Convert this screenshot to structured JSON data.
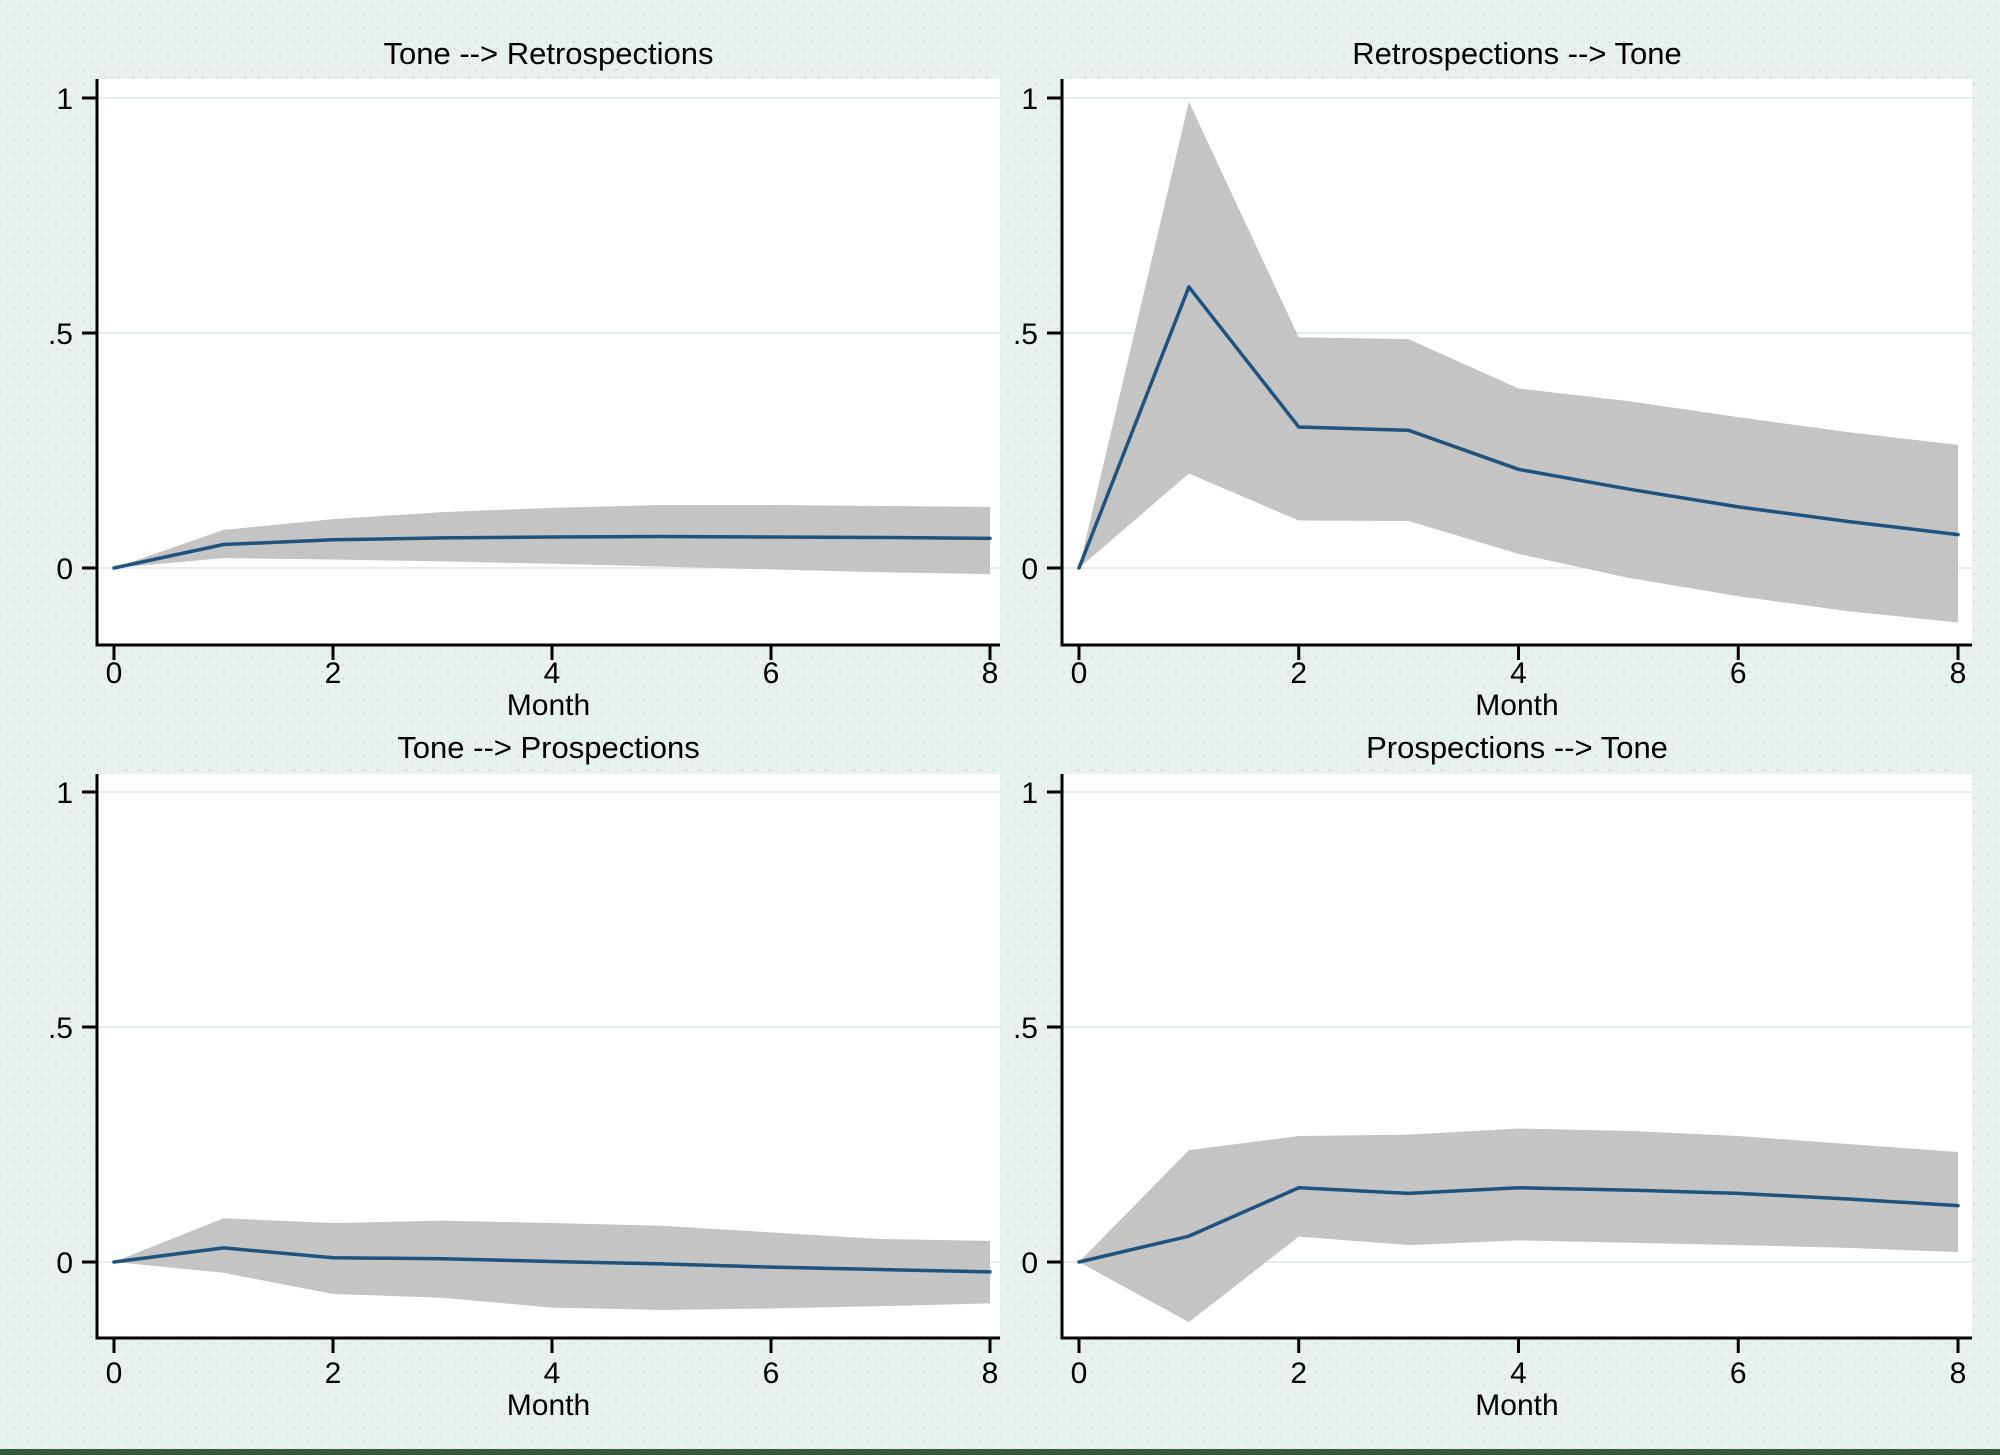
{
  "figure": {
    "background_color": "#e9f1ef",
    "plot_area_color": "#ffffff",
    "grid_color": "#e3eeec",
    "axis_color": "#000000",
    "band_color": "#c4c4c4",
    "line_color": "#1f537f",
    "bottom_border_color": "#33593f"
  },
  "axes": {
    "x_label": "Month",
    "x_ticks": [
      "0",
      "2",
      "4",
      "6",
      "8"
    ],
    "x_tick_values": [
      0,
      2,
      4,
      6,
      8
    ],
    "y_ticks": [
      "0",
      ".5",
      "1"
    ],
    "y_tick_values": [
      0,
      0.5,
      1
    ],
    "x_range": [
      0,
      8
    ],
    "y_range_displayed": [
      -0.16,
      1.04
    ],
    "grid": "on",
    "legend": "none"
  },
  "chart_data": [
    {
      "type": "line",
      "title": "Tone --> Retrospections",
      "xlabel": "Month",
      "x": [
        0,
        1,
        2,
        3,
        4,
        5,
        6,
        7,
        8
      ],
      "series": [
        {
          "name": "irf",
          "values": [
            0,
            0.05,
            0.06,
            0.064,
            0.066,
            0.067,
            0.066,
            0.065,
            0.063
          ]
        },
        {
          "name": "ci_upper",
          "values": [
            0,
            0.081,
            0.104,
            0.119,
            0.128,
            0.134,
            0.134,
            0.132,
            0.13
          ]
        },
        {
          "name": "ci_lower",
          "values": [
            0,
            0.021,
            0.018,
            0.014,
            0.009,
            0.003,
            -0.003,
            -0.009,
            -0.013
          ]
        }
      ]
    },
    {
      "type": "line",
      "title": "Retrospections --> Tone",
      "xlabel": "Month",
      "x": [
        0,
        1,
        2,
        3,
        4,
        5,
        6,
        7,
        8
      ],
      "series": [
        {
          "name": "irf",
          "values": [
            0,
            0.598,
            0.3,
            0.293,
            0.21,
            0.168,
            0.13,
            0.099,
            0.071
          ]
        },
        {
          "name": "ci_upper",
          "values": [
            0,
            0.992,
            0.491,
            0.487,
            0.382,
            0.355,
            0.321,
            0.289,
            0.262
          ]
        },
        {
          "name": "ci_lower",
          "values": [
            0,
            0.201,
            0.101,
            0.1,
            0.03,
            -0.021,
            -0.06,
            -0.092,
            -0.116
          ]
        }
      ]
    },
    {
      "type": "line",
      "title": "Tone --> Prospections",
      "xlabel": "Month",
      "x": [
        0,
        1,
        2,
        3,
        4,
        5,
        6,
        7,
        8
      ],
      "series": [
        {
          "name": "irf",
          "values": [
            0,
            0.03,
            0.009,
            0.007,
            0.001,
            -0.004,
            -0.011,
            -0.016,
            -0.021
          ]
        },
        {
          "name": "ci_upper",
          "values": [
            0,
            0.093,
            0.083,
            0.088,
            0.083,
            0.077,
            0.063,
            0.049,
            0.045
          ]
        },
        {
          "name": "ci_lower",
          "values": [
            0,
            -0.023,
            -0.068,
            -0.076,
            -0.097,
            -0.102,
            -0.099,
            -0.094,
            -0.088
          ]
        }
      ]
    },
    {
      "type": "line",
      "title": "Prospections --> Tone",
      "xlabel": "Month",
      "x": [
        0,
        1,
        2,
        3,
        4,
        5,
        6,
        7,
        8
      ],
      "series": [
        {
          "name": "irf",
          "values": [
            0,
            0.055,
            0.158,
            0.146,
            0.158,
            0.153,
            0.146,
            0.134,
            0.12
          ]
        },
        {
          "name": "ci_upper",
          "values": [
            0,
            0.238,
            0.268,
            0.271,
            0.284,
            0.279,
            0.268,
            0.251,
            0.234
          ]
        },
        {
          "name": "ci_lower",
          "values": [
            0,
            -0.128,
            0.054,
            0.036,
            0.046,
            0.041,
            0.036,
            0.03,
            0.021
          ]
        }
      ]
    }
  ]
}
